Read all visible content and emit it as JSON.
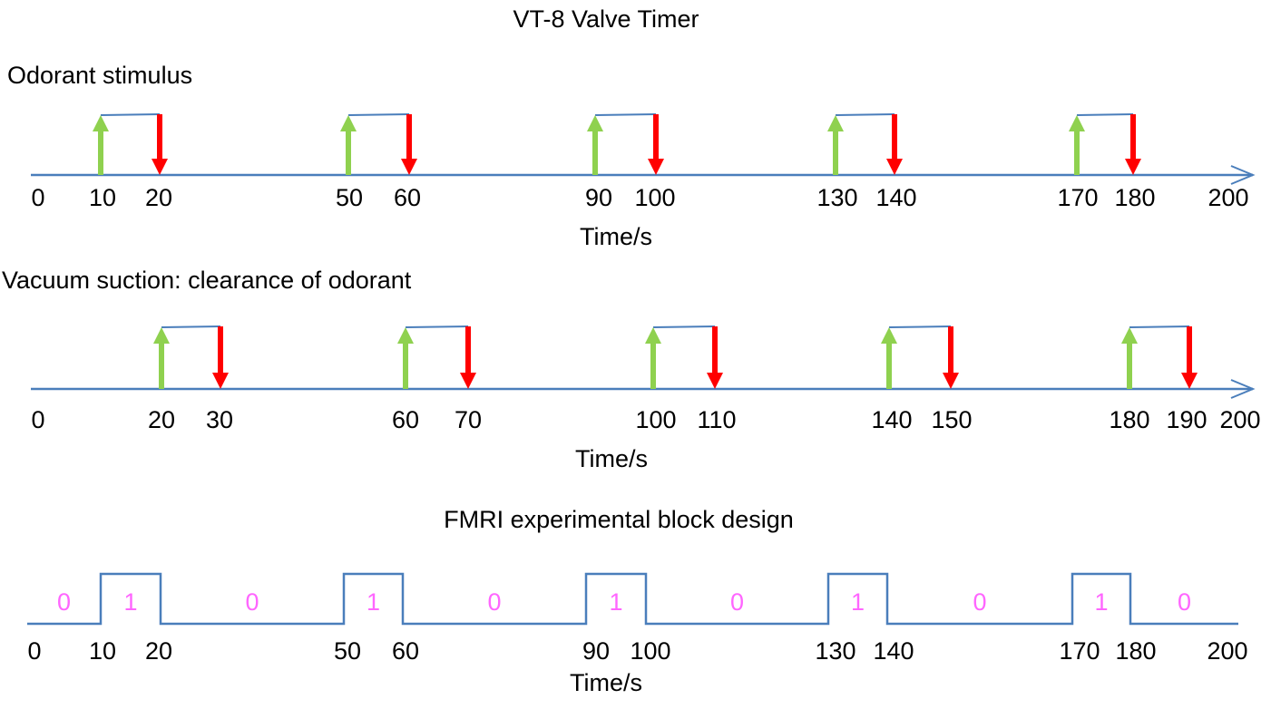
{
  "title": "VT-8 Valve Timer",
  "colors": {
    "axis": "#4a7ebb",
    "open_arrow": "#8fd14f",
    "close_arrow": "#ff0000",
    "bit_label": "#ff66ff",
    "text": "#000000"
  },
  "panels": {
    "odorant": {
      "label": "Odorant stimulus",
      "axis_label": "Time/s",
      "ticks": [
        "0",
        "10",
        "20",
        "50",
        "60",
        "90",
        "100",
        "130",
        "140",
        "170",
        "180",
        "200"
      ],
      "pulses": [
        {
          "open": 10,
          "close": 20
        },
        {
          "open": 50,
          "close": 60
        },
        {
          "open": 90,
          "close": 100
        },
        {
          "open": 130,
          "close": 140
        },
        {
          "open": 170,
          "close": 180
        }
      ]
    },
    "vacuum": {
      "label": "Vacuum suction: clearance of odorant",
      "axis_label": "Time/s",
      "ticks": [
        "0",
        "20",
        "30",
        "60",
        "70",
        "100",
        "110",
        "140",
        "150",
        "180",
        "190",
        "200"
      ],
      "pulses": [
        {
          "open": 20,
          "close": 30
        },
        {
          "open": 60,
          "close": 70
        },
        {
          "open": 100,
          "close": 110
        },
        {
          "open": 140,
          "close": 150
        },
        {
          "open": 180,
          "close": 190
        }
      ]
    },
    "fmri": {
      "label": "FMRI experimental block design",
      "axis_label": "Time/s",
      "ticks": [
        "0",
        "10",
        "20",
        "50",
        "60",
        "90",
        "100",
        "130",
        "140",
        "170",
        "180",
        "200"
      ],
      "blocks": [
        {
          "start": 0,
          "end": 10,
          "value": "0"
        },
        {
          "start": 10,
          "end": 20,
          "value": "1"
        },
        {
          "start": 20,
          "end": 50,
          "value": "0"
        },
        {
          "start": 50,
          "end": 60,
          "value": "1"
        },
        {
          "start": 60,
          "end": 90,
          "value": "0"
        },
        {
          "start": 90,
          "end": 100,
          "value": "1"
        },
        {
          "start": 100,
          "end": 130,
          "value": "0"
        },
        {
          "start": 130,
          "end": 140,
          "value": "1"
        },
        {
          "start": 140,
          "end": 170,
          "value": "0"
        },
        {
          "start": 170,
          "end": 180,
          "value": "1"
        },
        {
          "start": 180,
          "end": 200,
          "value": "0"
        }
      ]
    }
  }
}
